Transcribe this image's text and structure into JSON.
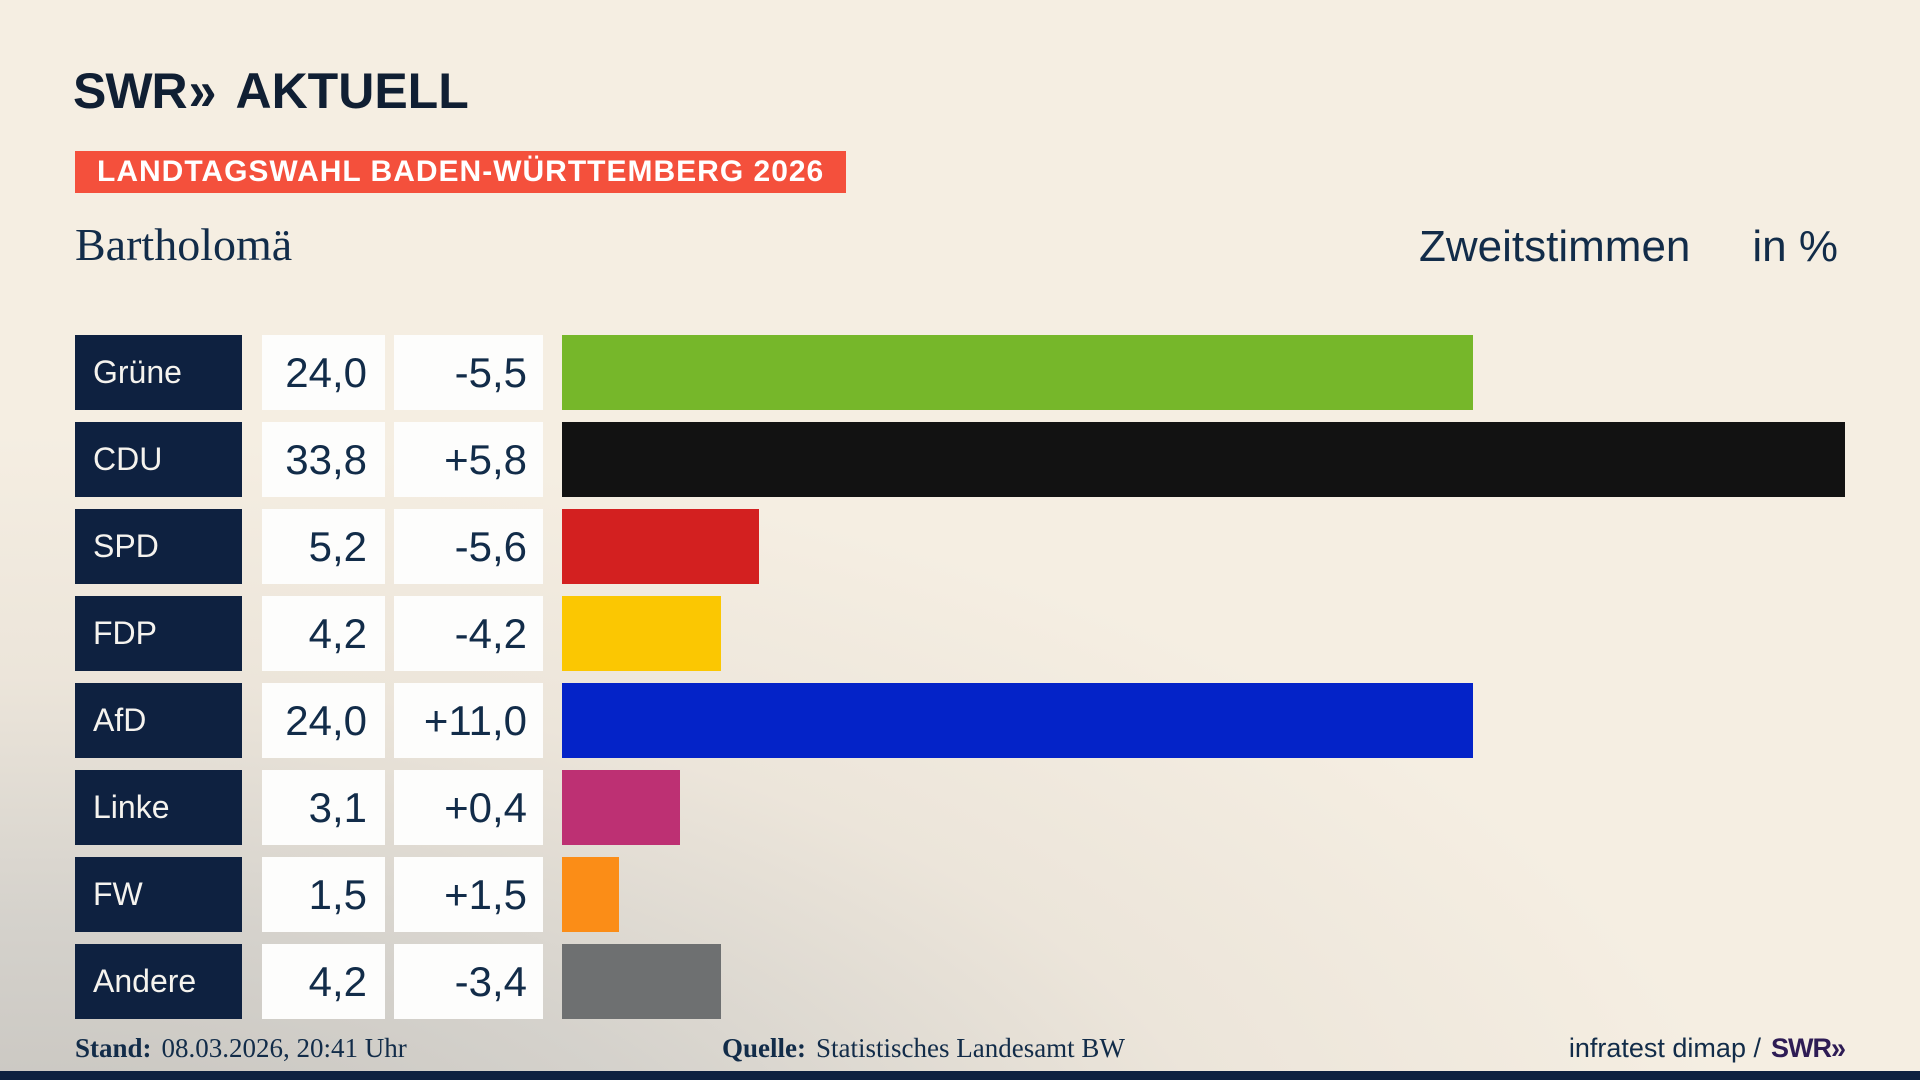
{
  "brand": {
    "name": "SWR",
    "chevrons": "»",
    "suffix": "AKTUELL"
  },
  "banner": {
    "text": "LANDTAGSWAHL BADEN-WÜRTTEMBERG 2026"
  },
  "header": {
    "title": "Bartholomä",
    "measure": "Zweitstimmen",
    "unit": "in %"
  },
  "chart_data": {
    "type": "bar",
    "orientation": "horizontal",
    "title": "Landtagswahl Baden-Württemberg 2026 – Bartholomä – Zweitstimmen in %",
    "categories": [
      "Grüne",
      "CDU",
      "SPD",
      "FDP",
      "AfD",
      "Linke",
      "FW",
      "Andere"
    ],
    "series": [
      {
        "name": "Zweitstimmen (%)",
        "values": [
          24.0,
          33.8,
          5.2,
          4.2,
          24.0,
          3.1,
          1.5,
          4.2
        ]
      },
      {
        "name": "Veränderung (Prozentpunkte)",
        "values": [
          -5.5,
          5.8,
          -5.6,
          -4.2,
          11.0,
          0.4,
          1.5,
          -3.4
        ]
      }
    ],
    "xlim": [
      0,
      33.8
    ],
    "grid": false,
    "legend": "none",
    "bar_colors": [
      "#76b72a",
      "#121212",
      "#d32020",
      "#fbc702",
      "#0423c8",
      "#bd3073",
      "#fb8d17",
      "#6e7071"
    ]
  },
  "rows": [
    {
      "party": "Grüne",
      "value": "24,0",
      "change": "-5,5",
      "pct": 24.0,
      "color": "#76b72a"
    },
    {
      "party": "CDU",
      "value": "33,8",
      "change": "+5,8",
      "pct": 33.8,
      "color": "#121212"
    },
    {
      "party": "SPD",
      "value": "5,2",
      "change": "-5,6",
      "pct": 5.2,
      "color": "#d32020"
    },
    {
      "party": "FDP",
      "value": "4,2",
      "change": "-4,2",
      "pct": 4.2,
      "color": "#fbc702"
    },
    {
      "party": "AfD",
      "value": "24,0",
      "change": "+11,0",
      "pct": 24.0,
      "color": "#0423c8"
    },
    {
      "party": "Linke",
      "value": "3,1",
      "change": "+0,4",
      "pct": 3.1,
      "color": "#bd3073"
    },
    {
      "party": "FW",
      "value": "1,5",
      "change": "+1,5",
      "pct": 1.5,
      "color": "#fb8d17"
    },
    {
      "party": "Andere",
      "value": "4,2",
      "change": "-3,4",
      "pct": 4.2,
      "color": "#6e7071"
    }
  ],
  "footer": {
    "stand_label": "Stand:",
    "stand_value": "08.03.2026, 20:41 Uhr",
    "quelle_label": "Quelle:",
    "quelle_value": "Statistisches Landesamt BW",
    "credit_text": "infratest dimap /",
    "credit_brand": "SWR",
    "credit_chevrons": "»"
  },
  "colors": {
    "banner_red": "#f4503c",
    "navy_box": "#0e2140",
    "text_navy": "#122c49",
    "logo_navy": "#101f33",
    "credit_purple": "#2e1c55",
    "value_box_bg": "#fdfdfc",
    "bottom_strip": "#0e2140"
  }
}
